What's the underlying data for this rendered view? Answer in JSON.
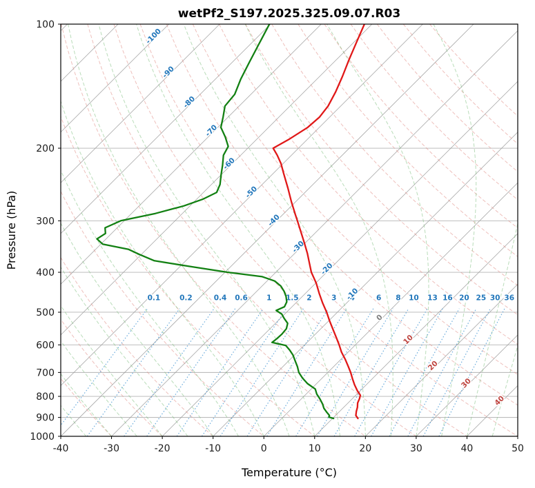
{
  "chart_data": {
    "type": "line",
    "variant": "skew-t-log-p",
    "title": "wetPf2_S197.2025.325.09.07.R03",
    "xlabel": "Temperature (°C)",
    "ylabel": "Pressure (hPa)",
    "x_range": [
      -40,
      50
    ],
    "p_range": [
      100,
      1000
    ],
    "x_ticks": [
      -40,
      -30,
      -20,
      -10,
      0,
      10,
      20,
      30,
      40,
      50
    ],
    "y_ticks": [
      100,
      200,
      300,
      400,
      500,
      600,
      700,
      800,
      900,
      1000
    ],
    "skew_deg": 45,
    "isotherm_step": 10,
    "grid": true,
    "isotherm_labels": [
      {
        "t": -100,
        "p": 108
      },
      {
        "t": -90,
        "p": 132
      },
      {
        "t": -80,
        "p": 156
      },
      {
        "t": -70,
        "p": 183
      },
      {
        "t": -60,
        "p": 220
      },
      {
        "t": -50,
        "p": 258
      },
      {
        "t": -40,
        "p": 302
      },
      {
        "t": -30,
        "p": 350
      },
      {
        "t": -20,
        "p": 396
      },
      {
        "t": -10,
        "p": 456
      },
      {
        "t": 0,
        "p": 520
      },
      {
        "t": 10,
        "p": 588
      },
      {
        "t": 20,
        "p": 680
      },
      {
        "t": 30,
        "p": 750
      },
      {
        "t": 40,
        "p": 827
      }
    ],
    "mixing_ratio_g_kg": [
      0.1,
      0.2,
      0.4,
      0.6,
      1,
      1.5,
      2,
      3,
      4,
      6,
      8,
      10,
      13,
      16,
      20,
      25,
      30,
      36
    ],
    "mixing_label_pressure": 467,
    "mixing_line_top_pressure": 485,
    "dry_adiabats_start_c": [
      -40,
      -30,
      -20,
      -10,
      0,
      10,
      20,
      30,
      40,
      50,
      60,
      70,
      80,
      90,
      100,
      110,
      120,
      130,
      140,
      150,
      160
    ],
    "moist_adiabats_start_c": [
      -40,
      -35,
      -30,
      -25,
      -20,
      -15,
      -10,
      -5,
      0,
      5,
      10,
      15,
      20,
      25,
      30,
      35,
      40,
      45
    ],
    "colors": {
      "temperature": "#e01818",
      "dewpoint": "#128012",
      "isotherm": "#999999",
      "grid": "#b3b3b3",
      "dry_adiabat": "#e08a84",
      "moist_adiabat": "#7fbf7f",
      "mixing_line": "#4f9bd5",
      "label_cold": "#2277bb",
      "label_zero": "#808080",
      "label_warm": "#bf4540",
      "frame": "#000000"
    },
    "series": [
      {
        "name": "temperature",
        "color": "#e01818",
        "points": [
          [
            100,
            -61.5
          ],
          [
            110,
            -59.6
          ],
          [
            122,
            -57.5
          ],
          [
            134,
            -55.5
          ],
          [
            146,
            -53.8
          ],
          [
            158,
            -52.5
          ],
          [
            168,
            -52.0
          ],
          [
            178,
            -52.3
          ],
          [
            190,
            -53.6
          ],
          [
            200,
            -55.0
          ],
          [
            208,
            -52.8
          ],
          [
            218,
            -50.4
          ],
          [
            230,
            -48.0
          ],
          [
            250,
            -44.2
          ],
          [
            270,
            -40.8
          ],
          [
            290,
            -37.5
          ],
          [
            300,
            -35.9
          ],
          [
            320,
            -32.9
          ],
          [
            340,
            -30.1
          ],
          [
            360,
            -27.5
          ],
          [
            380,
            -25.2
          ],
          [
            400,
            -23.0
          ],
          [
            425,
            -19.9
          ],
          [
            450,
            -17.3
          ],
          [
            475,
            -14.7
          ],
          [
            500,
            -12.1
          ],
          [
            525,
            -9.8
          ],
          [
            550,
            -7.5
          ],
          [
            575,
            -5.3
          ],
          [
            600,
            -3.2
          ],
          [
            625,
            -1.3
          ],
          [
            650,
            0.8
          ],
          [
            675,
            2.7
          ],
          [
            700,
            4.5
          ],
          [
            725,
            6.1
          ],
          [
            750,
            7.7
          ],
          [
            775,
            9.4
          ],
          [
            795,
            10.9
          ],
          [
            810,
            11.4
          ],
          [
            830,
            11.9
          ],
          [
            850,
            12.7
          ],
          [
            870,
            13.3
          ],
          [
            890,
            14.0
          ],
          [
            905,
            15.0
          ]
        ]
      },
      {
        "name": "dewpoint",
        "color": "#128012",
        "points": [
          [
            100,
            -80.2
          ],
          [
            112,
            -78.3
          ],
          [
            124,
            -76.6
          ],
          [
            136,
            -75.0
          ],
          [
            148,
            -73.2
          ],
          [
            158,
            -72.8
          ],
          [
            168,
            -71.0
          ],
          [
            178,
            -69.4
          ],
          [
            188,
            -66.6
          ],
          [
            198,
            -64.2
          ],
          [
            208,
            -63.4
          ],
          [
            220,
            -61.6
          ],
          [
            232,
            -60.0
          ],
          [
            245,
            -58.3
          ],
          [
            256,
            -57.4
          ],
          [
            266,
            -58.8
          ],
          [
            276,
            -61.2
          ],
          [
            288,
            -65.3
          ],
          [
            300,
            -70.7
          ],
          [
            312,
            -72.4
          ],
          [
            322,
            -71.2
          ],
          [
            332,
            -71.8
          ],
          [
            342,
            -69.6
          ],
          [
            352,
            -63.5
          ],
          [
            362,
            -60.4
          ],
          [
            375,
            -56.2
          ],
          [
            388,
            -47.5
          ],
          [
            400,
            -39.5
          ],
          [
            410,
            -31.8
          ],
          [
            420,
            -28.5
          ],
          [
            432,
            -26.3
          ],
          [
            445,
            -24.6
          ],
          [
            458,
            -23.2
          ],
          [
            472,
            -22.0
          ],
          [
            485,
            -21.5
          ],
          [
            495,
            -22.4
          ],
          [
            505,
            -20.6
          ],
          [
            518,
            -19.2
          ],
          [
            532,
            -17.6
          ],
          [
            548,
            -16.8
          ],
          [
            565,
            -16.6
          ],
          [
            580,
            -16.7
          ],
          [
            592,
            -16.9
          ],
          [
            602,
            -13.6
          ],
          [
            618,
            -11.9
          ],
          [
            635,
            -10.3
          ],
          [
            655,
            -8.8
          ],
          [
            678,
            -7.1
          ],
          [
            700,
            -5.7
          ],
          [
            722,
            -3.9
          ],
          [
            745,
            -1.8
          ],
          [
            768,
            0.8
          ],
          [
            790,
            2.1
          ],
          [
            812,
            3.7
          ],
          [
            835,
            5.2
          ],
          [
            855,
            6.3
          ],
          [
            875,
            7.7
          ],
          [
            890,
            8.8
          ],
          [
            898,
            9.0
          ],
          [
            905,
            10.2
          ]
        ]
      }
    ]
  }
}
